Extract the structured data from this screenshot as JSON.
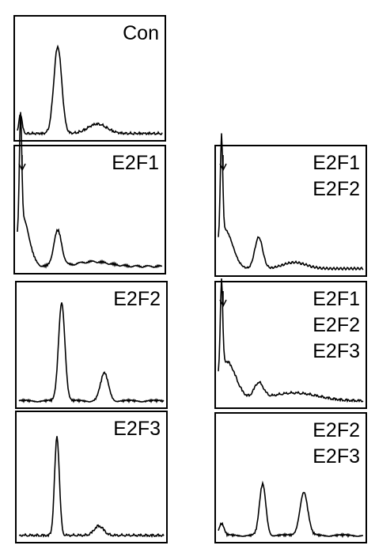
{
  "panels": [
    {
      "labels": [
        "Con"
      ]
    },
    {
      "labels": [
        "E2F1"
      ]
    },
    {
      "labels": [
        "E2F2"
      ]
    },
    {
      "labels": [
        "E2F3"
      ]
    },
    {
      "labels": [
        "E2F1",
        "E2F2"
      ]
    },
    {
      "labels": [
        "E2F1",
        "E2F2",
        "E2F3"
      ]
    },
    {
      "labels": [
        "E2F2",
        "E2F3"
      ]
    }
  ]
}
